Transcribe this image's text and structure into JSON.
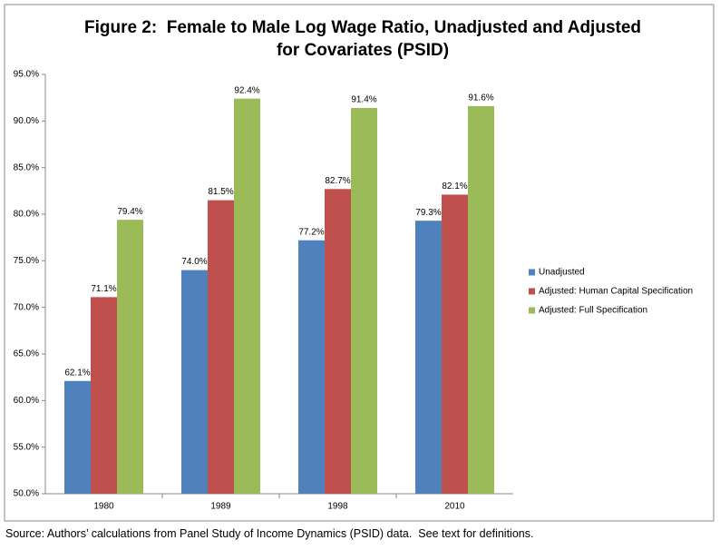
{
  "chart_data": {
    "type": "bar",
    "title": "Figure 2:  Female to Male Log Wage Ratio, Unadjusted and Adjusted for Covariates (PSID)",
    "categories": [
      "1980",
      "1989",
      "1998",
      "2010"
    ],
    "series": [
      {
        "name": "Unadjusted",
        "color": "#4f81bd",
        "values": [
          62.1,
          74.0,
          77.2,
          79.3
        ],
        "value_labels": [
          "62.1%",
          "74.0%",
          "77.2%",
          "79.3%"
        ]
      },
      {
        "name": "Adjusted:  Human Capital Specification",
        "color": "#c0504d",
        "values": [
          71.1,
          81.5,
          82.7,
          82.1
        ],
        "value_labels": [
          "71.1%",
          "81.5%",
          "82.7%",
          "82.1%"
        ]
      },
      {
        "name": "Adjusted:  Full Specification",
        "color": "#9bbb59",
        "values": [
          79.4,
          92.4,
          91.4,
          91.6
        ],
        "value_labels": [
          "79.4%",
          "92.4%",
          "91.4%",
          "91.6%"
        ]
      }
    ],
    "ylim": [
      50,
      95
    ],
    "yticks": [
      {
        "value": 50,
        "label": "50.0%"
      },
      {
        "value": 55,
        "label": "55.0%"
      },
      {
        "value": 60,
        "label": "60.0%"
      },
      {
        "value": 65,
        "label": "65.0%"
      },
      {
        "value": 70,
        "label": "70.0%"
      },
      {
        "value": 75,
        "label": "75.0%"
      },
      {
        "value": 80,
        "label": "80.0%"
      },
      {
        "value": 85,
        "label": "85.0%"
      },
      {
        "value": 90,
        "label": "90.0%"
      },
      {
        "value": 95,
        "label": "95.0%"
      }
    ],
    "grid": false,
    "legend": "right",
    "note": "Source: Authors’ calculations from Panel Study of Income Dynamics (PSID) data.  See text for definitions."
  }
}
